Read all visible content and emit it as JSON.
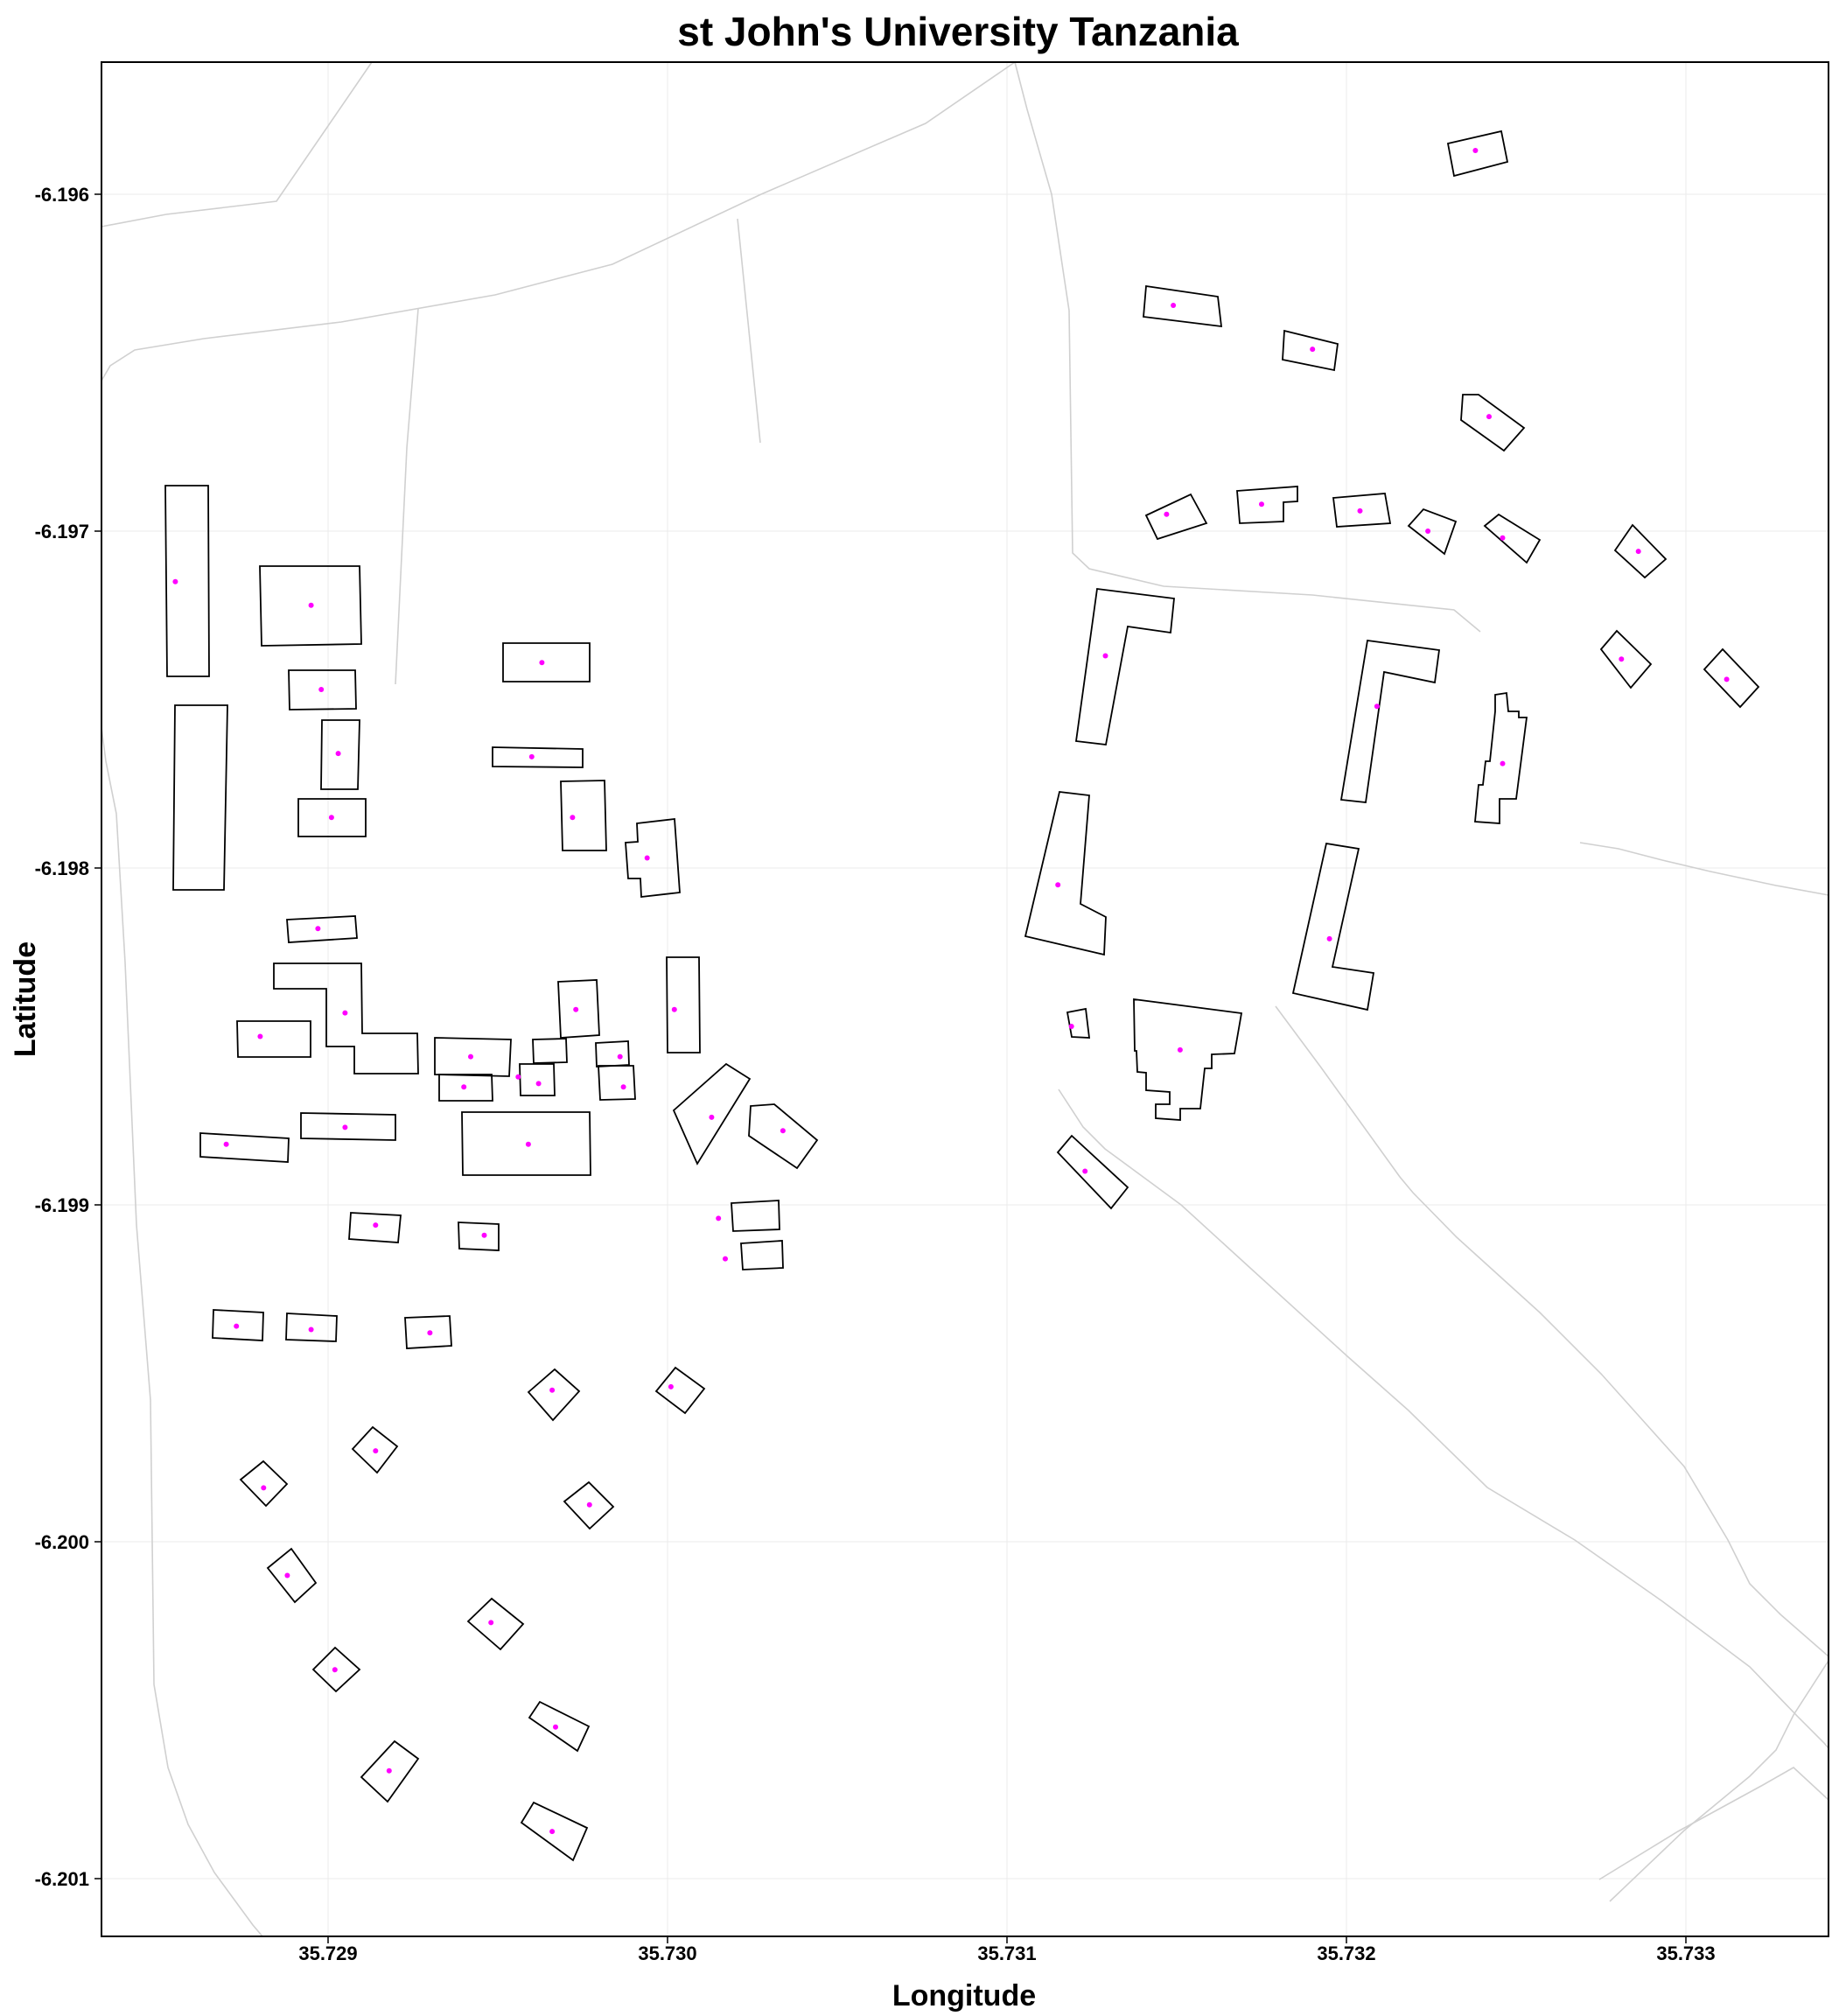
{
  "title": "st John's University Tanzania",
  "x_axis": {
    "label": "Longitude",
    "ticks": [
      "35.729",
      "35.730",
      "35.731",
      "35.732",
      "35.733"
    ]
  },
  "y_axis": {
    "label": "Latitude",
    "ticks": [
      "-6.196",
      "-6.197",
      "-6.198",
      "-6.199",
      "-6.200",
      "-6.201"
    ]
  },
  "colors": {
    "building_outline": "#000000",
    "centroid": "#ff00ff",
    "road": "#d0d0d0",
    "grid": "#ebebeb"
  },
  "chart_data": {
    "type": "map",
    "xlim": [
      35.7283,
      35.7334
    ],
    "ylim": [
      -6.20115,
      -6.1956
    ],
    "grid": true,
    "legend": "none",
    "layers": [
      "roads",
      "building footprints",
      "building centroids"
    ],
    "centroids": [
      [
        35.72855,
        -6.19715
      ],
      [
        35.72895,
        -6.19722
      ],
      [
        35.72898,
        -6.19747
      ],
      [
        35.72903,
        -6.19766
      ],
      [
        35.72901,
        -6.19785
      ],
      [
        35.72963,
        -6.19739
      ],
      [
        35.7296,
        -6.19767
      ],
      [
        35.72972,
        -6.19785
      ],
      [
        35.72994,
        -6.19797
      ],
      [
        35.72897,
        -6.19818
      ],
      [
        35.72905,
        -6.19843
      ],
      [
        35.7288,
        -6.1985
      ],
      [
        35.72942,
        -6.19856
      ],
      [
        35.7294,
        -6.19865
      ],
      [
        35.72962,
        -6.19864
      ],
      [
        35.72956,
        -6.19862
      ],
      [
        35.72973,
        -6.19842
      ],
      [
        35.72986,
        -6.19856
      ],
      [
        35.72987,
        -6.19865
      ],
      [
        35.73002,
        -6.19842
      ],
      [
        35.72959,
        -6.19882
      ],
      [
        35.72905,
        -6.19877
      ],
      [
        35.7287,
        -6.19882
      ],
      [
        35.73013,
        -6.19874
      ],
      [
        35.73034,
        -6.19878
      ],
      [
        35.73015,
        -6.19904
      ],
      [
        35.73017,
        -6.19916
      ],
      [
        35.72914,
        -6.19906
      ],
      [
        35.72946,
        -6.19909
      ],
      [
        35.72873,
        -6.19936
      ],
      [
        35.72895,
        -6.19937
      ],
      [
        35.7293,
        -6.19938
      ],
      [
        35.72966,
        -6.19955
      ],
      [
        35.73001,
        -6.19954
      ],
      [
        35.72914,
        -6.19973
      ],
      [
        35.72881,
        -6.19984
      ],
      [
        35.72977,
        -6.19989
      ],
      [
        35.72888,
        -6.2001
      ],
      [
        35.72948,
        -6.20024
      ],
      [
        35.72902,
        -6.20038
      ],
      [
        35.72967,
        -6.20055
      ],
      [
        35.72918,
        -6.20068
      ],
      [
        35.72966,
        -6.20086
      ],
      [
        35.73149,
        -6.19633
      ],
      [
        35.7319,
        -6.19646
      ],
      [
        35.73238,
        -6.19587
      ],
      [
        35.73242,
        -6.19666
      ],
      [
        35.73147,
        -6.19695
      ],
      [
        35.73175,
        -6.19692
      ],
      [
        35.73204,
        -6.19694
      ],
      [
        35.73224,
        -6.197
      ],
      [
        35.73246,
        -6.19702
      ],
      [
        35.73286,
        -6.19706
      ],
      [
        35.73129,
        -6.19737
      ],
      [
        35.73209,
        -6.19752
      ],
      [
        35.73246,
        -6.19769
      ],
      [
        35.73281,
        -6.19738
      ],
      [
        35.73312,
        -6.19744
      ],
      [
        35.73115,
        -6.19805
      ],
      [
        35.73195,
        -6.19821
      ],
      [
        35.73119,
        -6.19847
      ],
      [
        35.73151,
        -6.19854
      ],
      [
        35.73123,
        -6.1989
      ]
    ]
  }
}
